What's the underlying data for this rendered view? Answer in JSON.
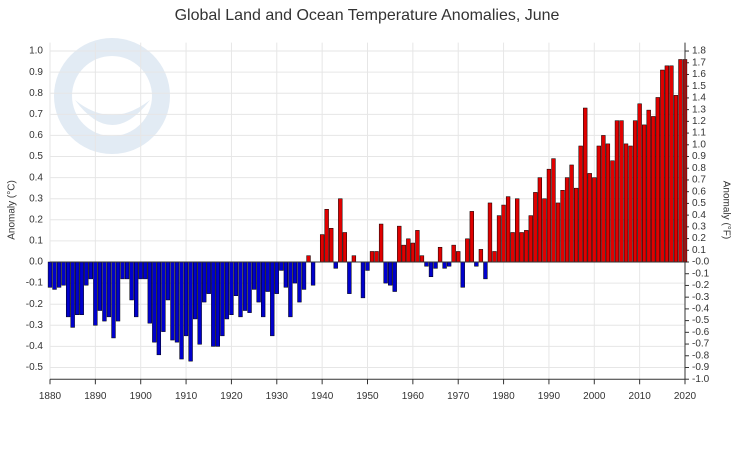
{
  "chart_data": {
    "type": "bar",
    "title": "Global Land and Ocean Temperature Anomalies, June",
    "y_label": "Anomaly (°C)",
    "y2_label": "Anomaly (°F)",
    "x": [
      1880,
      1881,
      1882,
      1883,
      1884,
      1885,
      1886,
      1887,
      1888,
      1889,
      1890,
      1891,
      1892,
      1893,
      1894,
      1895,
      1896,
      1897,
      1898,
      1899,
      1900,
      1901,
      1902,
      1903,
      1904,
      1905,
      1906,
      1907,
      1908,
      1909,
      1910,
      1911,
      1912,
      1913,
      1914,
      1915,
      1916,
      1917,
      1918,
      1919,
      1920,
      1921,
      1922,
      1923,
      1924,
      1925,
      1926,
      1927,
      1928,
      1929,
      1930,
      1931,
      1932,
      1933,
      1934,
      1935,
      1936,
      1937,
      1938,
      1939,
      1940,
      1941,
      1942,
      1943,
      1944,
      1945,
      1946,
      1947,
      1948,
      1949,
      1950,
      1951,
      1952,
      1953,
      1954,
      1955,
      1956,
      1957,
      1958,
      1959,
      1960,
      1961,
      1962,
      1963,
      1964,
      1965,
      1966,
      1967,
      1968,
      1969,
      1970,
      1971,
      1972,
      1973,
      1974,
      1975,
      1976,
      1977,
      1978,
      1979,
      1980,
      1981,
      1982,
      1983,
      1984,
      1985,
      1986,
      1987,
      1988,
      1989,
      1990,
      1991,
      1992,
      1993,
      1994,
      1995,
      1996,
      1997,
      1998,
      1999,
      2000,
      2001,
      2002,
      2003,
      2004,
      2005,
      2006,
      2007,
      2008,
      2009,
      2010,
      2011,
      2012,
      2013,
      2014,
      2015,
      2016,
      2017,
      2018,
      2019,
      2020
    ],
    "values": [
      -0.12,
      -0.13,
      -0.12,
      -0.11,
      -0.26,
      -0.31,
      -0.25,
      -0.25,
      -0.11,
      -0.08,
      -0.3,
      -0.23,
      -0.28,
      -0.26,
      -0.36,
      -0.28,
      -0.08,
      -0.08,
      -0.18,
      -0.26,
      -0.08,
      -0.08,
      -0.29,
      -0.38,
      -0.44,
      -0.33,
      -0.18,
      -0.37,
      -0.38,
      -0.46,
      -0.35,
      -0.47,
      -0.27,
      -0.39,
      -0.19,
      -0.15,
      -0.4,
      -0.4,
      -0.35,
      -0.27,
      -0.25,
      -0.16,
      -0.26,
      -0.23,
      -0.24,
      -0.13,
      -0.19,
      -0.26,
      -0.14,
      -0.35,
      -0.15,
      -0.04,
      -0.12,
      -0.26,
      -0.1,
      -0.19,
      -0.13,
      0.03,
      -0.11,
      0.0,
      0.13,
      0.25,
      0.16,
      -0.03,
      0.3,
      0.14,
      -0.15,
      0.03,
      0.0,
      -0.17,
      -0.04,
      0.05,
      0.05,
      0.18,
      -0.1,
      -0.11,
      -0.14,
      0.17,
      0.08,
      0.11,
      0.09,
      0.15,
      0.03,
      -0.02,
      -0.07,
      -0.03,
      0.07,
      -0.03,
      -0.02,
      0.08,
      0.05,
      -0.12,
      0.11,
      0.24,
      -0.02,
      0.06,
      -0.08,
      0.28,
      0.05,
      0.22,
      0.27,
      0.31,
      0.14,
      0.3,
      0.14,
      0.15,
      0.22,
      0.33,
      0.4,
      0.3,
      0.44,
      0.49,
      0.28,
      0.34,
      0.4,
      0.46,
      0.35,
      0.55,
      0.73,
      0.42,
      0.4,
      0.55,
      0.6,
      0.56,
      0.48,
      0.67,
      0.67,
      0.56,
      0.55,
      0.67,
      0.75,
      0.65,
      0.72,
      0.69,
      0.78,
      0.91,
      0.93,
      0.93,
      0.79,
      0.96,
      0.96
    ],
    "positive_color": "#e00000",
    "negative_color": "#0000cc",
    "xlim": [
      1880,
      2020
    ],
    "xticks": [
      1880,
      1890,
      1900,
      1910,
      1920,
      1930,
      1940,
      1950,
      1960,
      1970,
      1980,
      1990,
      2000,
      2010,
      2020
    ],
    "ylim": [
      -0.556,
      1.04
    ],
    "yticks": [
      -0.5,
      -0.4,
      -0.3,
      -0.2,
      -0.1,
      {
        "value": 0,
        "label": "0.0"
      },
      0.1,
      0.2,
      0.3,
      0.4,
      0.5,
      0.6,
      0.7,
      0.8,
      0.9,
      {
        "value": 1,
        "label": "1.0"
      }
    ],
    "y2lim": [
      -1.0008,
      1.872
    ],
    "y2ticks": [
      {
        "value": -1,
        "label": "-1.0"
      },
      -0.9,
      -0.8,
      -0.7,
      -0.6,
      -0.5,
      -0.4,
      -0.3,
      -0.2,
      -0.1,
      {
        "value": 0,
        "label": "-0.0"
      },
      0.1,
      0.2,
      0.3,
      0.4,
      0.5,
      0.6,
      0.7,
      0.8,
      0.9,
      {
        "value": 1,
        "label": "1.0"
      },
      1.1,
      1.2,
      1.3,
      1.4,
      1.5,
      1.6,
      1.7,
      1.8
    ],
    "grid": true
  }
}
